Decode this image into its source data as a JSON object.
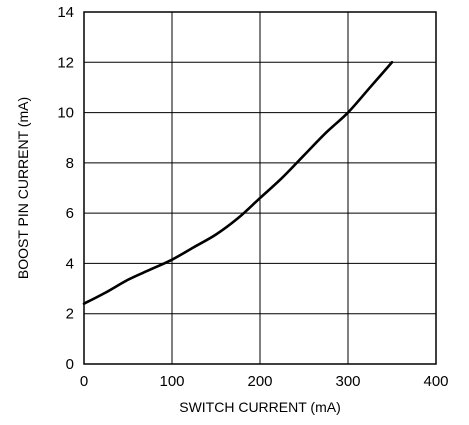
{
  "chart_data": {
    "type": "line",
    "title": "",
    "xlabel": "SWITCH CURRENT (mA)",
    "ylabel": "BOOST PIN CURRENT (mA)",
    "xlim": [
      0,
      400
    ],
    "ylim": [
      0,
      14
    ],
    "xticks": [
      0,
      100,
      200,
      300,
      400
    ],
    "yticks": [
      0,
      2,
      4,
      6,
      8,
      10,
      12,
      14
    ],
    "grid": true,
    "colors": {
      "line": "#000000",
      "grid": "#000000",
      "background": "#ffffff"
    },
    "series": [
      {
        "x": [
          0,
          25,
          50,
          75,
          100,
          125,
          150,
          175,
          200,
          225,
          250,
          275,
          300,
          325,
          350
        ],
        "y": [
          2.4,
          2.85,
          3.35,
          3.75,
          4.15,
          4.65,
          5.15,
          5.8,
          6.6,
          7.4,
          8.3,
          9.2,
          10.0,
          11.0,
          12.0
        ]
      }
    ]
  }
}
